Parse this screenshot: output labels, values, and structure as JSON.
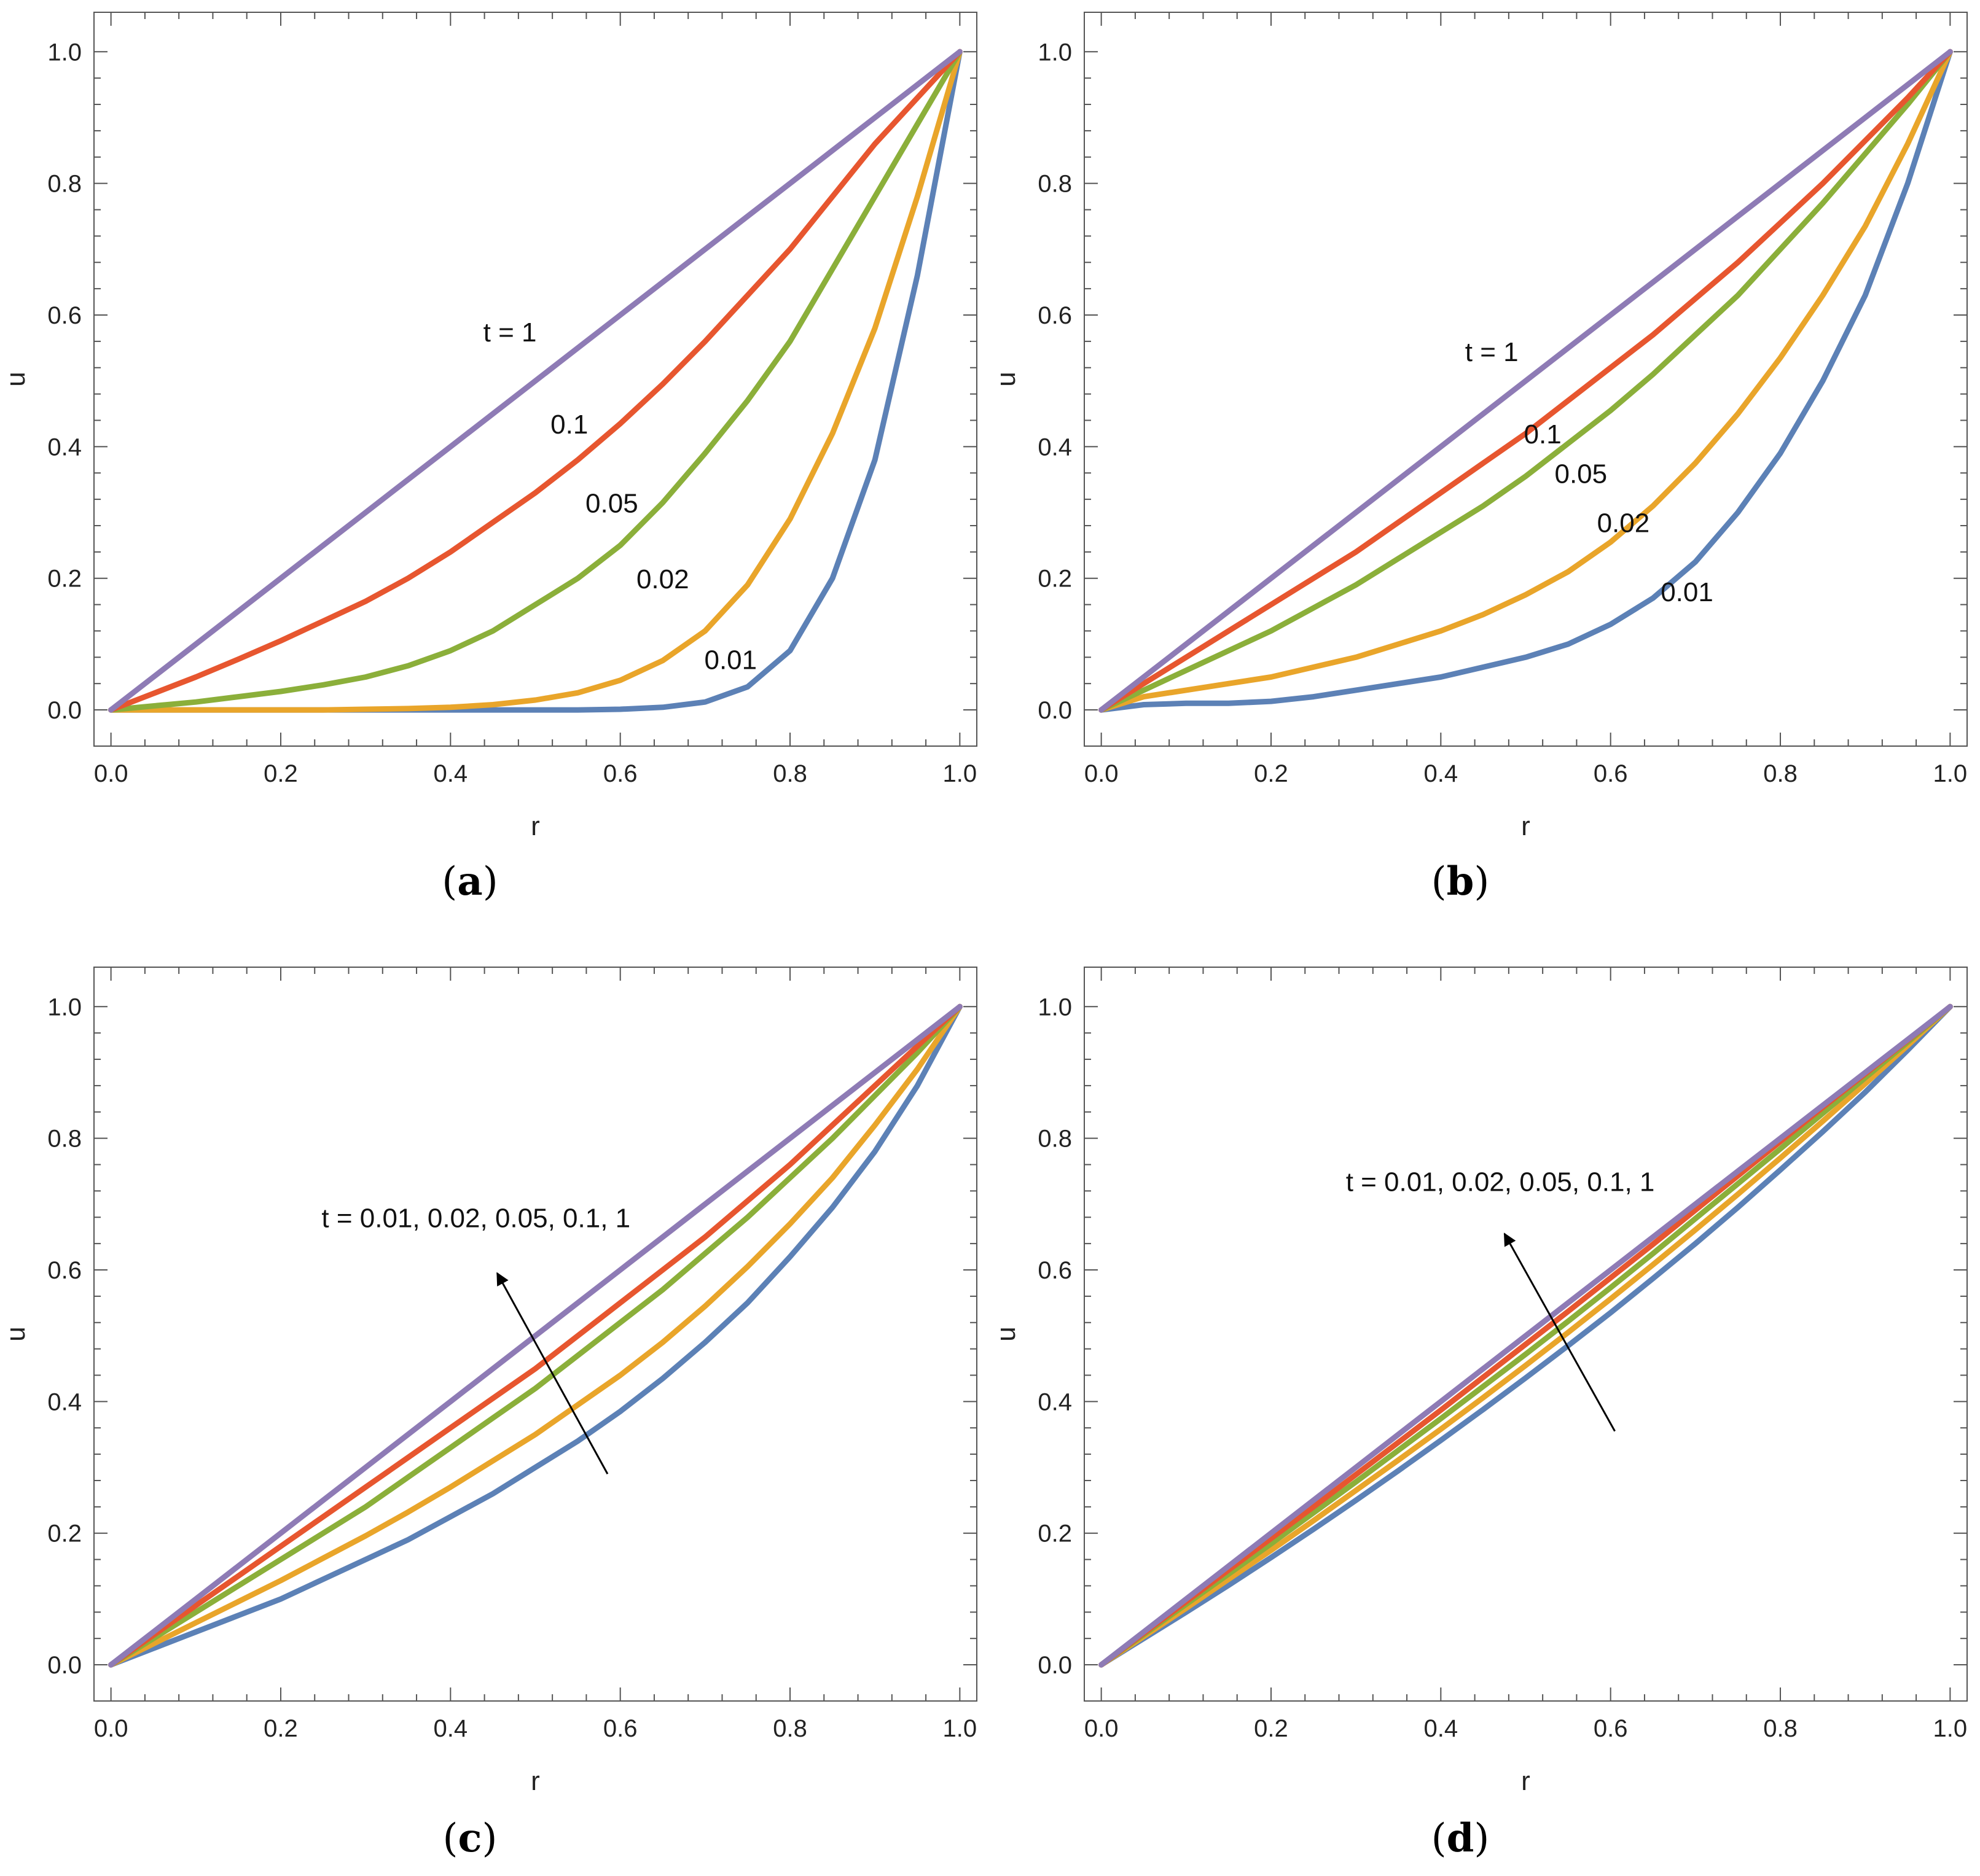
{
  "colors": {
    "t_1": "#8E7BB5",
    "t_0_1": "#E7562F",
    "t_0_05": "#8BAF3A",
    "t_0_02": "#E9A52A",
    "t_0_01": "#5C81B6",
    "frame": "#555555",
    "arrow": "#000000"
  },
  "chart_data": [
    {
      "panel": "a",
      "panel_label": "a",
      "type": "line",
      "xlabel": "r",
      "ylabel": "u",
      "xlim": [
        -0.02,
        1.02
      ],
      "ylim": [
        -0.055,
        1.06
      ],
      "x_ticks": [
        "0.0",
        "0.2",
        "0.4",
        "0.6",
        "0.8",
        "1.0"
      ],
      "y_ticks": [
        "0.0",
        "0.2",
        "0.4",
        "0.6",
        "0.8",
        "1.0"
      ],
      "x": [
        0,
        0.05,
        0.1,
        0.15,
        0.2,
        0.25,
        0.3,
        0.35,
        0.4,
        0.45,
        0.5,
        0.55,
        0.6,
        0.65,
        0.7,
        0.75,
        0.8,
        0.85,
        0.9,
        0.95,
        1.0
      ],
      "series": [
        {
          "name": "t = 1",
          "color_key": "t_1",
          "values": [
            0,
            0.05,
            0.1,
            0.15,
            0.2,
            0.25,
            0.3,
            0.35,
            0.4,
            0.45,
            0.5,
            0.55,
            0.6,
            0.65,
            0.7,
            0.75,
            0.8,
            0.85,
            0.9,
            0.95,
            1.0
          ]
        },
        {
          "name": "0.1",
          "color_key": "t_0_1",
          "values": [
            0,
            0.025,
            0.05,
            0.077,
            0.105,
            0.135,
            0.165,
            0.2,
            0.24,
            0.285,
            0.33,
            0.38,
            0.435,
            0.495,
            0.56,
            0.63,
            0.7,
            0.78,
            0.86,
            0.93,
            1.0
          ]
        },
        {
          "name": "0.05",
          "color_key": "t_0_05",
          "values": [
            0,
            0.006,
            0.012,
            0.02,
            0.028,
            0.038,
            0.05,
            0.067,
            0.09,
            0.12,
            0.16,
            0.2,
            0.25,
            0.315,
            0.39,
            0.47,
            0.56,
            0.67,
            0.78,
            0.89,
            1.0
          ]
        },
        {
          "name": "0.02",
          "color_key": "t_0_02",
          "values": [
            0,
            0,
            0,
            0,
            0,
            0,
            0.001,
            0.002,
            0.004,
            0.008,
            0.015,
            0.026,
            0.045,
            0.075,
            0.12,
            0.19,
            0.29,
            0.42,
            0.58,
            0.78,
            1.0
          ]
        },
        {
          "name": "0.01",
          "color_key": "t_0_01",
          "values": [
            0,
            0,
            0,
            0,
            0,
            0,
            0,
            0,
            0,
            0,
            0,
            0,
            0.001,
            0.004,
            0.012,
            0.035,
            0.09,
            0.2,
            0.38,
            0.66,
            1.0
          ]
        }
      ],
      "curve_labels": [
        {
          "text": "t = 1",
          "x": 0.47,
          "y": 0.56
        },
        {
          "text": "0.1",
          "x": 0.54,
          "y": 0.42
        },
        {
          "text": "0.05",
          "x": 0.59,
          "y": 0.3
        },
        {
          "text": "0.02",
          "x": 0.65,
          "y": 0.185
        },
        {
          "text": "0.01",
          "x": 0.73,
          "y": 0.062
        }
      ],
      "arrow": null
    },
    {
      "panel": "b",
      "panel_label": "b",
      "type": "line",
      "xlabel": "r",
      "ylabel": "u",
      "xlim": [
        -0.02,
        1.02
      ],
      "ylim": [
        -0.055,
        1.06
      ],
      "x_ticks": [
        "0.0",
        "0.2",
        "0.4",
        "0.6",
        "0.8",
        "1.0"
      ],
      "y_ticks": [
        "0.0",
        "0.2",
        "0.4",
        "0.6",
        "0.8",
        "1.0"
      ],
      "x": [
        0,
        0.05,
        0.1,
        0.15,
        0.2,
        0.25,
        0.3,
        0.35,
        0.4,
        0.45,
        0.5,
        0.55,
        0.6,
        0.65,
        0.7,
        0.75,
        0.8,
        0.85,
        0.9,
        0.95,
        1.0
      ],
      "series": [
        {
          "name": "t = 1",
          "color_key": "t_1",
          "values": [
            0,
            0.05,
            0.1,
            0.15,
            0.2,
            0.25,
            0.3,
            0.35,
            0.4,
            0.45,
            0.5,
            0.55,
            0.6,
            0.65,
            0.7,
            0.75,
            0.8,
            0.85,
            0.9,
            0.95,
            1.0
          ]
        },
        {
          "name": "0.1",
          "color_key": "t_0_1",
          "values": [
            0,
            0.04,
            0.08,
            0.12,
            0.16,
            0.2,
            0.24,
            0.285,
            0.33,
            0.375,
            0.42,
            0.47,
            0.52,
            0.57,
            0.625,
            0.68,
            0.74,
            0.8,
            0.865,
            0.93,
            1.0
          ]
        },
        {
          "name": "0.05",
          "color_key": "t_0_05",
          "values": [
            0,
            0.03,
            0.06,
            0.09,
            0.12,
            0.155,
            0.19,
            0.23,
            0.27,
            0.31,
            0.355,
            0.405,
            0.455,
            0.51,
            0.57,
            0.63,
            0.7,
            0.77,
            0.845,
            0.92,
            1.0
          ]
        },
        {
          "name": "0.02",
          "color_key": "t_0_02",
          "values": [
            0,
            0.02,
            0.03,
            0.04,
            0.05,
            0.065,
            0.08,
            0.1,
            0.12,
            0.145,
            0.175,
            0.21,
            0.255,
            0.31,
            0.375,
            0.45,
            0.535,
            0.63,
            0.735,
            0.86,
            1.0
          ]
        },
        {
          "name": "0.01",
          "color_key": "t_0_01",
          "values": [
            0,
            0.008,
            0.01,
            0.01,
            0.013,
            0.02,
            0.03,
            0.04,
            0.05,
            0.065,
            0.08,
            0.1,
            0.13,
            0.17,
            0.225,
            0.3,
            0.39,
            0.5,
            0.63,
            0.8,
            1.0
          ]
        }
      ],
      "curve_labels": [
        {
          "text": "t = 1",
          "x": 0.46,
          "y": 0.53
        },
        {
          "text": "0.1",
          "x": 0.52,
          "y": 0.405
        },
        {
          "text": "0.05",
          "x": 0.565,
          "y": 0.345
        },
        {
          "text": "0.02",
          "x": 0.615,
          "y": 0.27
        },
        {
          "text": "0.01",
          "x": 0.69,
          "y": 0.165
        }
      ],
      "arrow": null
    },
    {
      "panel": "c",
      "panel_label": "c",
      "type": "line",
      "xlabel": "r",
      "ylabel": "u",
      "xlim": [
        -0.02,
        1.02
      ],
      "ylim": [
        -0.055,
        1.06
      ],
      "x_ticks": [
        "0.0",
        "0.2",
        "0.4",
        "0.6",
        "0.8",
        "1.0"
      ],
      "y_ticks": [
        "0.0",
        "0.2",
        "0.4",
        "0.6",
        "0.8",
        "1.0"
      ],
      "x": [
        0,
        0.05,
        0.1,
        0.15,
        0.2,
        0.25,
        0.3,
        0.35,
        0.4,
        0.45,
        0.5,
        0.55,
        0.6,
        0.65,
        0.7,
        0.75,
        0.8,
        0.85,
        0.9,
        0.95,
        1.0
      ],
      "series": [
        {
          "name": "t = 1",
          "color_key": "t_1",
          "values": [
            0,
            0.05,
            0.1,
            0.15,
            0.2,
            0.25,
            0.3,
            0.35,
            0.4,
            0.45,
            0.5,
            0.55,
            0.6,
            0.65,
            0.7,
            0.75,
            0.8,
            0.85,
            0.9,
            0.95,
            1.0
          ]
        },
        {
          "name": "0.1",
          "color_key": "t_0_1",
          "values": [
            0,
            0.045,
            0.09,
            0.135,
            0.18,
            0.225,
            0.27,
            0.315,
            0.36,
            0.405,
            0.45,
            0.5,
            0.55,
            0.6,
            0.65,
            0.705,
            0.76,
            0.82,
            0.88,
            0.94,
            1.0
          ]
        },
        {
          "name": "0.05",
          "color_key": "t_0_05",
          "values": [
            0,
            0.04,
            0.08,
            0.12,
            0.16,
            0.2,
            0.24,
            0.285,
            0.33,
            0.375,
            0.42,
            0.47,
            0.52,
            0.57,
            0.625,
            0.68,
            0.74,
            0.8,
            0.865,
            0.93,
            1.0
          ]
        },
        {
          "name": "0.02",
          "color_key": "t_0_02",
          "values": [
            0,
            0.032,
            0.064,
            0.096,
            0.128,
            0.162,
            0.196,
            0.232,
            0.27,
            0.31,
            0.35,
            0.395,
            0.44,
            0.49,
            0.545,
            0.605,
            0.67,
            0.74,
            0.82,
            0.905,
            1.0
          ]
        },
        {
          "name": "0.01",
          "color_key": "t_0_01",
          "values": [
            0,
            0.025,
            0.05,
            0.075,
            0.1,
            0.13,
            0.16,
            0.19,
            0.225,
            0.26,
            0.3,
            0.34,
            0.385,
            0.435,
            0.49,
            0.55,
            0.62,
            0.695,
            0.78,
            0.88,
            1.0
          ]
        }
      ],
      "curve_labels": [
        {
          "text": "t = 0.01, 0.02, 0.05, 0.1, 1",
          "x": 0.43,
          "y": 0.665
        }
      ],
      "arrow": {
        "x1": 0.585,
        "y1": 0.29,
        "x2": 0.455,
        "y2": 0.595
      }
    },
    {
      "panel": "d",
      "panel_label": "d",
      "type": "line",
      "xlabel": "r",
      "ylabel": "u",
      "xlim": [
        -0.02,
        1.02
      ],
      "ylim": [
        -0.055,
        1.06
      ],
      "x_ticks": [
        "0.0",
        "0.2",
        "0.4",
        "0.6",
        "0.8",
        "1.0"
      ],
      "y_ticks": [
        "0.0",
        "0.2",
        "0.4",
        "0.6",
        "0.8",
        "1.0"
      ],
      "x": [
        0,
        0.05,
        0.1,
        0.15,
        0.2,
        0.25,
        0.3,
        0.35,
        0.4,
        0.45,
        0.5,
        0.55,
        0.6,
        0.65,
        0.7,
        0.75,
        0.8,
        0.85,
        0.9,
        0.95,
        1.0
      ],
      "series": [
        {
          "name": "t = 1",
          "color_key": "t_1",
          "values": [
            0,
            0.05,
            0.1,
            0.15,
            0.2,
            0.25,
            0.3,
            0.35,
            0.4,
            0.45,
            0.5,
            0.55,
            0.6,
            0.65,
            0.7,
            0.75,
            0.8,
            0.85,
            0.9,
            0.95,
            1.0
          ]
        },
        {
          "name": "0.1",
          "color_key": "t_0_1",
          "values": [
            0,
            0.048,
            0.096,
            0.144,
            0.192,
            0.24,
            0.289,
            0.338,
            0.387,
            0.437,
            0.487,
            0.537,
            0.588,
            0.639,
            0.691,
            0.743,
            0.795,
            0.847,
            0.898,
            0.949,
            1.0
          ]
        },
        {
          "name": "0.05",
          "color_key": "t_0_05",
          "values": [
            0,
            0.046,
            0.092,
            0.138,
            0.184,
            0.231,
            0.278,
            0.326,
            0.374,
            0.423,
            0.472,
            0.522,
            0.573,
            0.625,
            0.678,
            0.731,
            0.784,
            0.838,
            0.892,
            0.946,
            1.0
          ]
        },
        {
          "name": "0.02",
          "color_key": "t_0_02",
          "values": [
            0,
            0.043,
            0.086,
            0.13,
            0.174,
            0.219,
            0.265,
            0.311,
            0.358,
            0.406,
            0.455,
            0.505,
            0.556,
            0.608,
            0.661,
            0.715,
            0.77,
            0.826,
            0.883,
            0.941,
            1.0
          ]
        },
        {
          "name": "0.01",
          "color_key": "t_0_01",
          "values": [
            0,
            0.04,
            0.08,
            0.121,
            0.163,
            0.206,
            0.25,
            0.295,
            0.341,
            0.388,
            0.436,
            0.485,
            0.535,
            0.587,
            0.64,
            0.695,
            0.752,
            0.81,
            0.87,
            0.934,
            1.0
          ]
        }
      ],
      "curve_labels": [
        {
          "text": "t = 0.01, 0.02, 0.05, 0.1, 1",
          "x": 0.47,
          "y": 0.72
        }
      ],
      "arrow": {
        "x1": 0.605,
        "y1": 0.355,
        "x2": 0.475,
        "y2": 0.655
      }
    }
  ]
}
